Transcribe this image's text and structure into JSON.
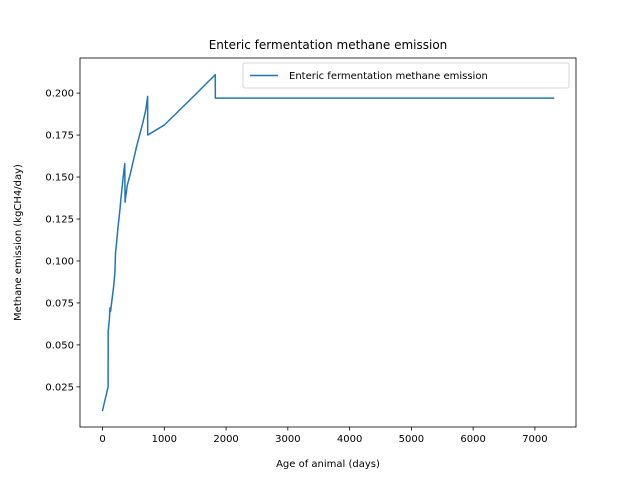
{
  "chart_data": {
    "type": "line",
    "title": "Enteric fermentation methane emission",
    "xlabel": "Age of animal (days)",
    "ylabel": "Methane emission (kgCH4/day)",
    "xlim": [
      -365,
      7665
    ],
    "ylim": [
      0.0011,
      0.2209
    ],
    "xticks": [
      0,
      1000,
      2000,
      3000,
      4000,
      5000,
      6000,
      7000
    ],
    "xtick_labels": [
      "0",
      "1000",
      "2000",
      "3000",
      "4000",
      "5000",
      "6000",
      "7000"
    ],
    "yticks": [
      0.025,
      0.05,
      0.075,
      0.1,
      0.125,
      0.15,
      0.175,
      0.2
    ],
    "ytick_labels": [
      "0.025",
      "0.050",
      "0.075",
      "0.100",
      "0.125",
      "0.150",
      "0.175",
      "0.200"
    ],
    "grid": false,
    "legend_position": "upper right",
    "series": [
      {
        "name": "Enteric fermentation methane emission",
        "color": "#1f77b4",
        "x": [
          0,
          90,
          91,
          110,
          120,
          130,
          150,
          180,
          200,
          210,
          225,
          250,
          280,
          300,
          320,
          340,
          360,
          365,
          370,
          400,
          450,
          500,
          550,
          600,
          650,
          700,
          730,
          731,
          1000,
          1500,
          1825,
          1826,
          3000,
          5000,
          7300
        ],
        "y": [
          0.011,
          0.025,
          0.058,
          0.065,
          0.072,
          0.07,
          0.076,
          0.085,
          0.093,
          0.105,
          0.11,
          0.12,
          0.13,
          0.138,
          0.145,
          0.152,
          0.158,
          0.135,
          0.137,
          0.145,
          0.152,
          0.16,
          0.168,
          0.175,
          0.182,
          0.19,
          0.198,
          0.175,
          0.181,
          0.199,
          0.211,
          0.197,
          0.197,
          0.197,
          0.197
        ]
      }
    ]
  }
}
